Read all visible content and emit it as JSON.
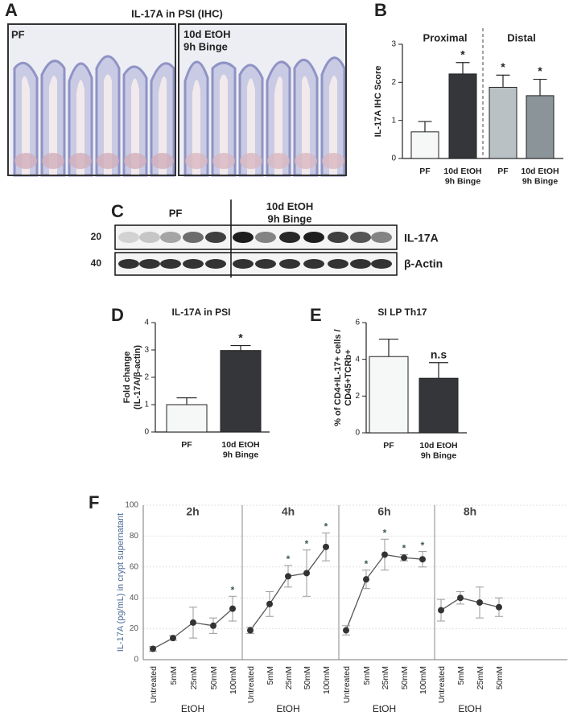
{
  "panel_letters": [
    "A",
    "B",
    "C",
    "D",
    "E",
    "F"
  ],
  "panel_a": {
    "title": "IL-17A in PSI (IHC)",
    "left_label": "PF",
    "right_label": "10d EtOH\n9h Binge"
  },
  "panel_c": {
    "group_left": "PF",
    "group_right": "10d EtOH\n9h Binge",
    "marker_top": "20",
    "marker_bottom": "40",
    "band_top": "IL-17A",
    "band_bottom": "β-Actin"
  },
  "chart_data": [
    {
      "type": "bar",
      "ylabel": "IL-17A IHC Score",
      "group_labels": [
        "Proximal",
        "Distal"
      ],
      "categories": [
        "PF",
        "10d EtOH\n9h Binge",
        "PF",
        "10d EtOH\n9h Binge"
      ],
      "values": [
        0.7,
        2.22,
        1.87,
        1.65
      ],
      "errors": [
        0.27,
        0.3,
        0.32,
        0.43
      ],
      "significance": [
        null,
        "*",
        "*",
        "*"
      ],
      "colors": [
        "#f6f8f8",
        "#34363a",
        "#b9c1c4",
        "#8b9498"
      ],
      "ylim": [
        0,
        3
      ],
      "yticks": [
        0,
        1,
        2,
        3
      ]
    },
    {
      "type": "bar",
      "title": "IL-17A in PSI",
      "ylabel": "Fold change\n(IL-17A/β-actin)",
      "categories": [
        "PF",
        "10d EtOH\n9h Binge"
      ],
      "values": [
        1.0,
        2.98
      ],
      "errors": [
        0.25,
        0.18
      ],
      "significance": [
        null,
        "*"
      ],
      "colors": [
        "#f6f8f8",
        "#34363a"
      ],
      "ylim": [
        0,
        4
      ],
      "yticks": [
        0,
        1,
        2,
        3,
        4
      ]
    },
    {
      "type": "bar",
      "title": "SI LP Th17",
      "ylabel": "% of CD4+IL-17+ cells /\nCD45+TCRb+",
      "categories": [
        "PF",
        "10d EtOH\n9h Binge"
      ],
      "values": [
        4.15,
        2.97
      ],
      "errors": [
        0.95,
        0.85
      ],
      "significance": [
        null,
        "n.s"
      ],
      "colors": [
        "#f6f8f8",
        "#34363a"
      ],
      "ylim": [
        0,
        6
      ],
      "yticks": [
        0,
        2,
        4,
        6
      ]
    },
    {
      "type": "line",
      "ylabel": "IL-17A (pg/mL) in crypt supernatant",
      "ylim": [
        0,
        100
      ],
      "yticks": [
        0,
        20,
        40,
        60,
        80,
        100
      ],
      "grid": true,
      "facets": [
        {
          "title": "2h",
          "xlabel": "EtOH",
          "categories": [
            "Untreated",
            "5mM",
            "25mM",
            "50mM",
            "100mM"
          ],
          "values": [
            7,
            14,
            24,
            22,
            33
          ],
          "errors": [
            1.5,
            1.5,
            10,
            5,
            8
          ],
          "significance": [
            null,
            null,
            null,
            null,
            "*"
          ]
        },
        {
          "title": "4h",
          "xlabel": "EtOH",
          "categories": [
            "Untreated",
            "5mM",
            "25mM",
            "50mM",
            "100mM"
          ],
          "values": [
            19,
            36,
            54,
            56,
            73
          ],
          "errors": [
            2,
            8,
            7,
            15,
            9
          ],
          "significance": [
            null,
            null,
            "*",
            "*",
            "*"
          ]
        },
        {
          "title": "6h",
          "xlabel": "EtOH",
          "categories": [
            "Untreated",
            "5mM",
            "25mM",
            "50mM",
            "100mM"
          ],
          "values": [
            19,
            52,
            68,
            66,
            65
          ],
          "errors": [
            3,
            6,
            10,
            2,
            5
          ],
          "significance": [
            null,
            "*",
            "*",
            "*",
            "*"
          ]
        },
        {
          "title": "8h",
          "xlabel": "EtOH",
          "categories": [
            "Untreated",
            "5mM",
            "25mM",
            "50mM"
          ],
          "values": [
            32,
            40,
            37,
            34
          ],
          "errors": [
            7,
            4,
            10,
            6
          ],
          "significance": [
            null,
            null,
            null,
            null
          ]
        }
      ]
    }
  ]
}
